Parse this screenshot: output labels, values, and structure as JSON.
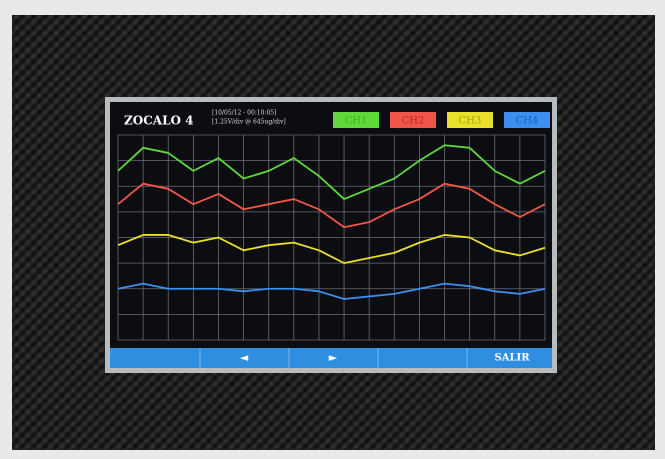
{
  "chart_data": {
    "type": "line",
    "title": "ZOCALO 4",
    "subtitle": [
      "[10/05/12 - 00:10:05]",
      "[1.25V/div @ 645ug/div]"
    ],
    "x": [
      0,
      1,
      2,
      3,
      4,
      5,
      6,
      7,
      8,
      9,
      10,
      11,
      12,
      13,
      14,
      15,
      16,
      17
    ],
    "xlim": [
      0,
      17
    ],
    "ylim": [
      0,
      8
    ],
    "xticks": [
      0,
      1,
      2,
      3,
      4,
      5,
      6,
      7,
      8,
      9,
      10,
      11,
      12,
      13,
      14,
      15,
      16,
      17
    ],
    "yticks": [
      0,
      1,
      2,
      3,
      4,
      5,
      6,
      7,
      8
    ],
    "grid": true,
    "series": [
      {
        "name": "CH1",
        "color": "#5fd93a",
        "values": [
          6.6,
          7.5,
          7.3,
          6.6,
          7.1,
          6.3,
          6.6,
          7.1,
          6.4,
          5.5,
          5.9,
          6.3,
          7.0,
          7.6,
          7.5,
          6.6,
          6.1,
          6.6
        ]
      },
      {
        "name": "CH2",
        "color": "#f0554a",
        "values": [
          5.3,
          6.1,
          5.9,
          5.3,
          5.7,
          5.1,
          5.3,
          5.5,
          5.1,
          4.4,
          4.6,
          5.1,
          5.5,
          6.1,
          5.9,
          5.3,
          4.8,
          5.3
        ]
      },
      {
        "name": "CH3",
        "color": "#e8e02a",
        "values": [
          3.7,
          4.1,
          4.1,
          3.8,
          4.0,
          3.5,
          3.7,
          3.8,
          3.5,
          3.0,
          3.2,
          3.4,
          3.8,
          4.1,
          4.0,
          3.5,
          3.3,
          3.6
        ]
      },
      {
        "name": "CH4",
        "color": "#3a8ff0",
        "values": [
          2.0,
          2.2,
          2.0,
          2.0,
          2.0,
          1.9,
          2.0,
          2.0,
          1.9,
          1.6,
          1.7,
          1.8,
          2.0,
          2.2,
          2.1,
          1.9,
          1.8,
          2.0
        ]
      }
    ]
  },
  "footer": {
    "buttons": [
      "◄",
      "►",
      "SALIR"
    ]
  }
}
